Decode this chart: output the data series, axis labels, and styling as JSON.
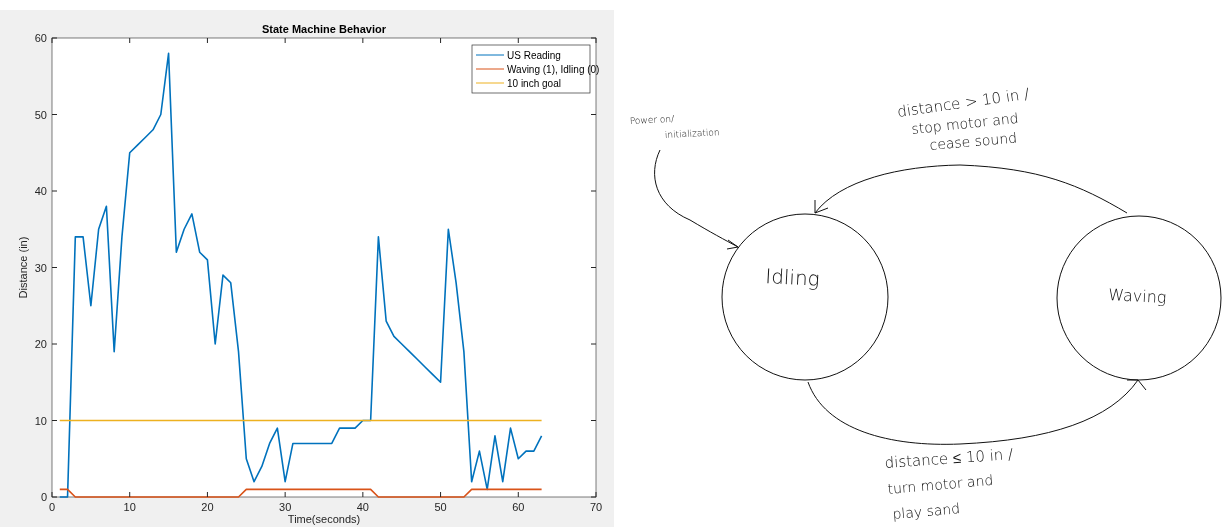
{
  "chart_data": [
    {
      "type": "line",
      "title": "State Machine Behavior",
      "xlabel": "Time(seconds)",
      "ylabel": "Distance (in)",
      "x": [
        1,
        2,
        3,
        4,
        5,
        6,
        7,
        8,
        9,
        10,
        11,
        12,
        13,
        14,
        15,
        16,
        17,
        18,
        19,
        20,
        21,
        22,
        23,
        24,
        25,
        26,
        27,
        28,
        29,
        30,
        31,
        32,
        33,
        34,
        35,
        36,
        37,
        38,
        39,
        40,
        41,
        42,
        43,
        44,
        45,
        46,
        47,
        48,
        49,
        50,
        51,
        52,
        53,
        54,
        55,
        56,
        57,
        58,
        59,
        60,
        61,
        62,
        63
      ],
      "xlim": [
        0,
        70
      ],
      "xticks": [
        0,
        10,
        20,
        30,
        40,
        50,
        60,
        70
      ],
      "ylim": [
        0,
        60
      ],
      "yticks": [
        0,
        10,
        20,
        30,
        40,
        50,
        60
      ],
      "legend": "top right",
      "grid": false,
      "series": [
        {
          "name": "US Reading",
          "color": "#0072bd",
          "values": [
            0,
            0,
            34,
            34,
            25,
            35,
            38,
            19,
            34,
            45,
            46,
            47,
            48,
            50,
            58,
            32,
            35,
            37,
            32,
            31,
            20,
            29,
            28,
            19,
            5,
            2,
            4,
            7,
            9,
            2,
            7,
            7,
            7,
            7,
            7,
            7,
            9,
            9,
            9,
            10,
            10,
            34,
            23,
            21,
            20,
            19,
            18,
            17,
            16,
            15,
            35,
            28,
            19,
            2,
            6,
            1,
            8,
            2,
            9,
            5,
            6,
            6,
            8
          ]
        },
        {
          "name": "Waving (1), Idling (0)",
          "color": "#d95319",
          "values": [
            1,
            1,
            0,
            0,
            0,
            0,
            0,
            0,
            0,
            0,
            0,
            0,
            0,
            0,
            0,
            0,
            0,
            0,
            0,
            0,
            0,
            0,
            0,
            0,
            1,
            1,
            1,
            1,
            1,
            1,
            1,
            1,
            1,
            1,
            1,
            1,
            1,
            1,
            1,
            1,
            1,
            0,
            0,
            0,
            0,
            0,
            0,
            0,
            0,
            0,
            0,
            0,
            0,
            1,
            1,
            1,
            1,
            1,
            1,
            1,
            1,
            1,
            1
          ]
        },
        {
          "name": "10 inch goal",
          "color": "#edb120",
          "x": [
            1,
            63
          ],
          "values": [
            10,
            10
          ]
        }
      ]
    },
    {
      "type": "other",
      "annotations": [
        "Power on/",
        "initialization",
        "distance > 10 in /",
        "stop motor and",
        "cease sound",
        "Idling",
        "Waving",
        "distance ≤ 10 in /",
        "turn motor and",
        "play sand"
      ]
    }
  ]
}
